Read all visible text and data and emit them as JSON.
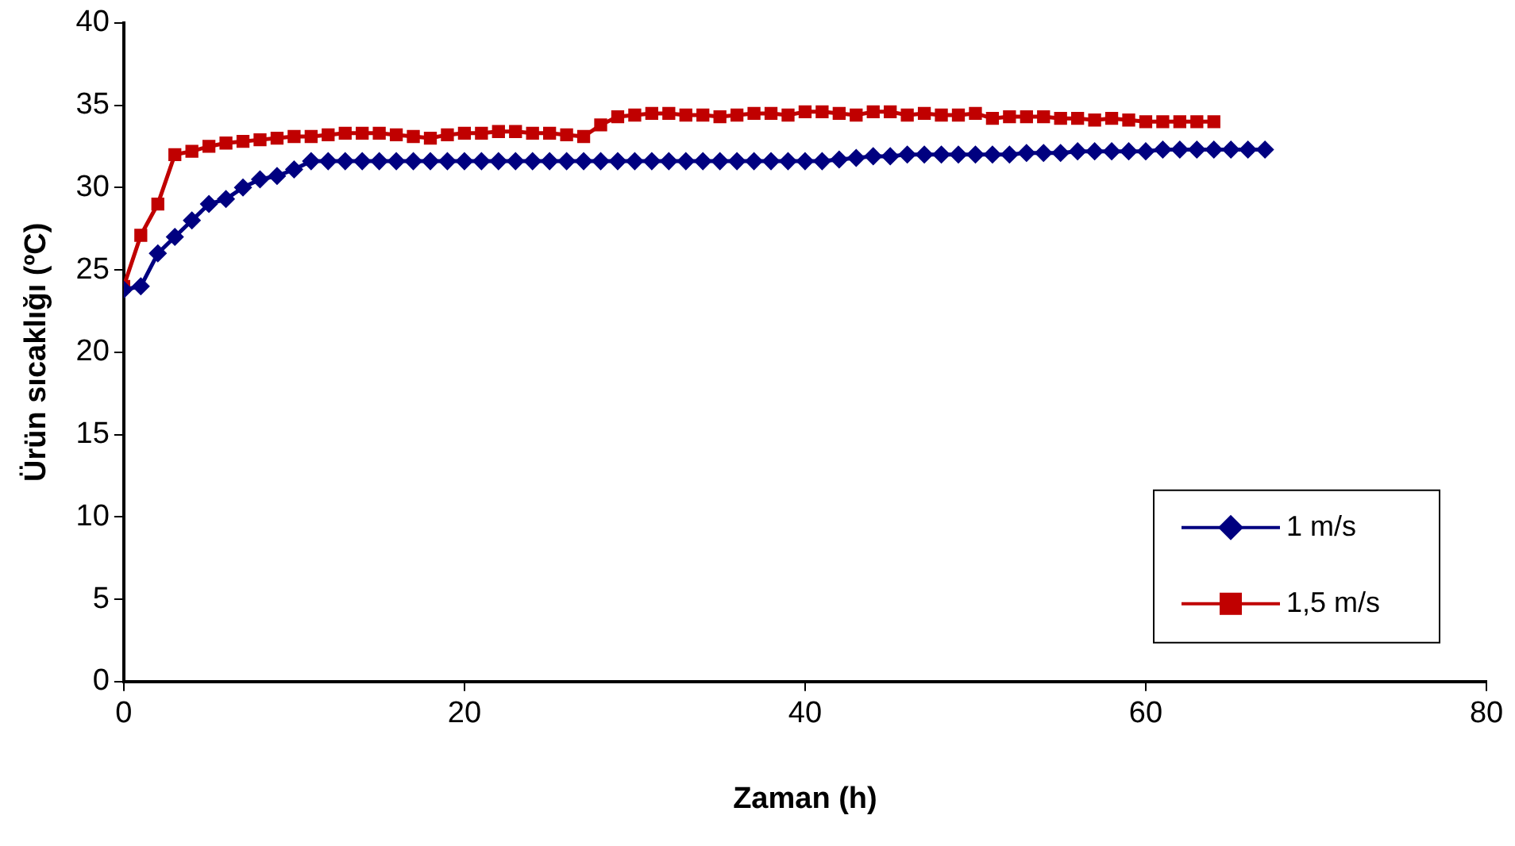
{
  "chart_data": {
    "type": "line",
    "xlabel": "Zaman (h)",
    "ylabel": "Ürün sıcaklığı (ºC)",
    "xlim": [
      0,
      80
    ],
    "xticks": [
      0,
      20,
      40,
      60,
      80
    ],
    "ylim": [
      0,
      40
    ],
    "yticks": [
      0,
      5,
      10,
      15,
      20,
      25,
      30,
      35,
      40
    ],
    "grid": false,
    "legend": "bottom right",
    "series": [
      {
        "name": "1 m/s",
        "color": "#000080",
        "marker": "diamond",
        "x": [
          0,
          1,
          2,
          3,
          4,
          5,
          6,
          7,
          8,
          9,
          10,
          11,
          12,
          13,
          14,
          15,
          16,
          17,
          18,
          19,
          20,
          21,
          22,
          23,
          24,
          25,
          26,
          27,
          28,
          29,
          30,
          31,
          32,
          33,
          34,
          35,
          36,
          37,
          38,
          39,
          40,
          41,
          42,
          43,
          44,
          45,
          46,
          47,
          48,
          49,
          50,
          51,
          52,
          53,
          54,
          55,
          56,
          57,
          58,
          59,
          60,
          61,
          62,
          63,
          64,
          65,
          66,
          67
        ],
        "values": [
          23.8,
          24,
          26,
          27,
          28,
          29,
          29.3,
          30,
          30.5,
          30.7,
          31.1,
          31.6,
          31.6,
          31.6,
          31.6,
          31.6,
          31.6,
          31.6,
          31.6,
          31.6,
          31.6,
          31.6,
          31.6,
          31.6,
          31.6,
          31.6,
          31.6,
          31.6,
          31.6,
          31.6,
          31.6,
          31.6,
          31.6,
          31.6,
          31.6,
          31.6,
          31.6,
          31.6,
          31.6,
          31.6,
          31.6,
          31.6,
          31.7,
          31.8,
          31.9,
          31.9,
          32,
          32,
          32,
          32,
          32,
          32,
          32,
          32.1,
          32.1,
          32.1,
          32.2,
          32.2,
          32.2,
          32.2,
          32.2,
          32.3,
          32.3,
          32.3,
          32.3,
          32.3,
          32.3,
          32.3
        ]
      },
      {
        "name": "1,5 m/s",
        "color": "#c00000",
        "marker": "square",
        "x": [
          0,
          1,
          2,
          3,
          4,
          5,
          6,
          7,
          8,
          9,
          10,
          11,
          12,
          13,
          14,
          15,
          16,
          17,
          18,
          19,
          20,
          21,
          22,
          23,
          24,
          25,
          26,
          27,
          28,
          29,
          30,
          31,
          32,
          33,
          34,
          35,
          36,
          37,
          38,
          39,
          40,
          41,
          42,
          43,
          44,
          45,
          46,
          47,
          48,
          49,
          50,
          51,
          52,
          53,
          54,
          55,
          56,
          57,
          58,
          59,
          60,
          61,
          62,
          63,
          64
        ],
        "values": [
          24,
          27.1,
          29,
          32,
          32.2,
          32.5,
          32.7,
          32.8,
          32.9,
          33,
          33.1,
          33.1,
          33.2,
          33.3,
          33.3,
          33.3,
          33.2,
          33.1,
          33,
          33.2,
          33.3,
          33.3,
          33.4,
          33.4,
          33.3,
          33.3,
          33.2,
          33.1,
          33.8,
          34.3,
          34.4,
          34.5,
          34.5,
          34.4,
          34.4,
          34.3,
          34.4,
          34.5,
          34.5,
          34.4,
          34.6,
          34.6,
          34.5,
          34.4,
          34.6,
          34.6,
          34.4,
          34.5,
          34.4,
          34.4,
          34.5,
          34.2,
          34.3,
          34.3,
          34.3,
          34.2,
          34.2,
          34.1,
          34.2,
          34.1,
          34,
          34,
          34,
          34,
          34
        ]
      }
    ]
  }
}
